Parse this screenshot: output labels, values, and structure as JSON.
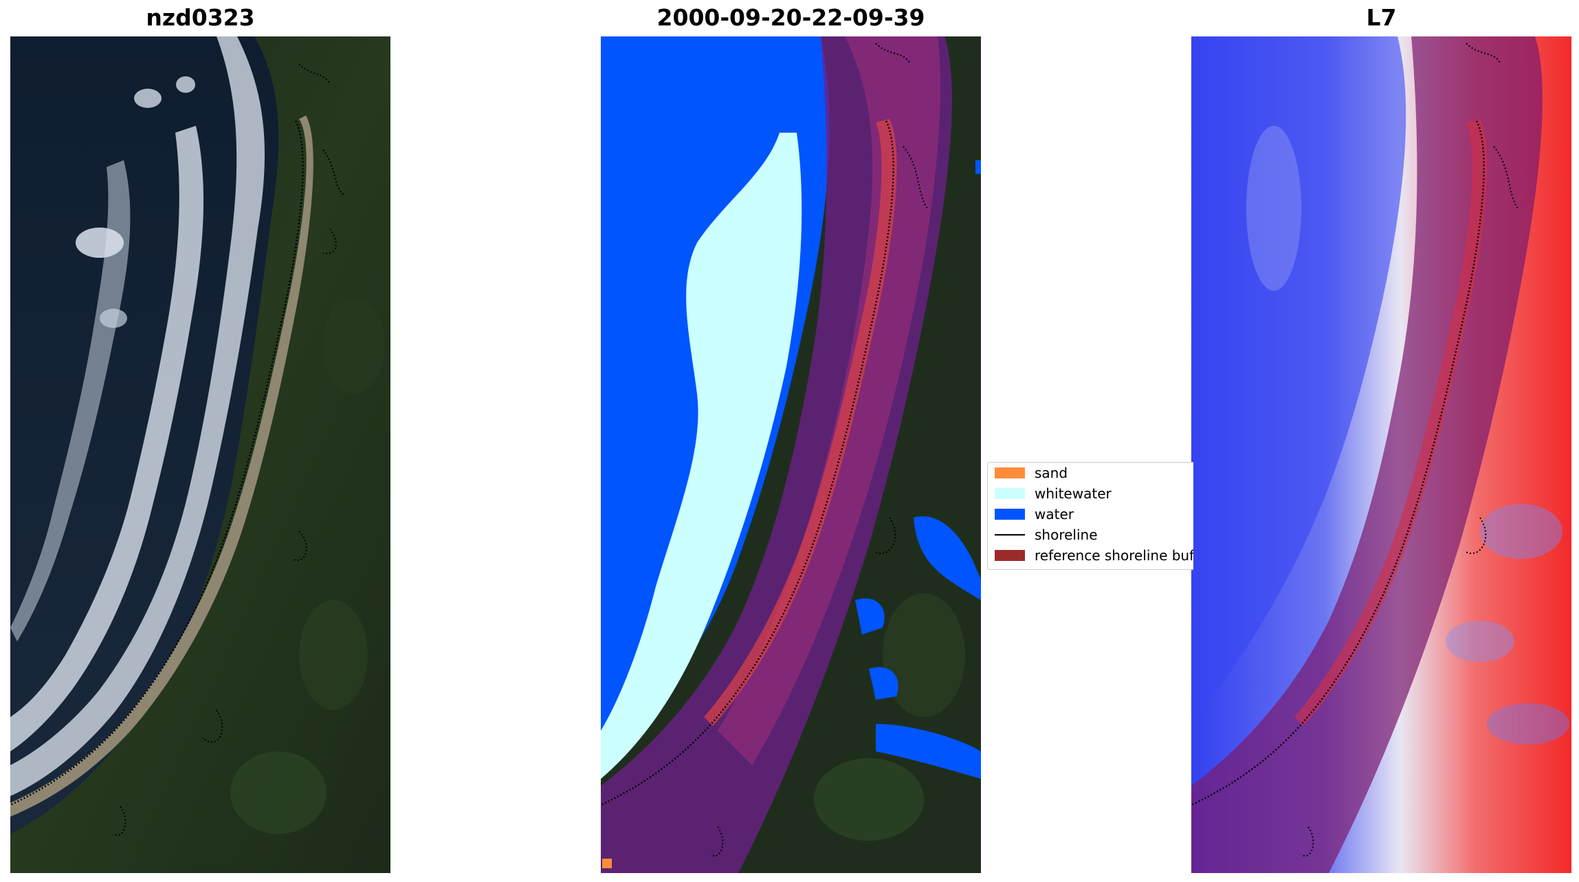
{
  "panels": [
    {
      "title": "nzd0323"
    },
    {
      "title": "2000-09-20-22-09-39"
    },
    {
      "title": "L7"
    }
  ],
  "legend": {
    "items": [
      {
        "label": "sand",
        "kind": "patch",
        "color": "#ff8c3a"
      },
      {
        "label": "whitewater",
        "kind": "patch",
        "color": "#ccffff"
      },
      {
        "label": "water",
        "kind": "patch",
        "color": "#0055ff"
      },
      {
        "label": "shoreline",
        "kind": "line",
        "color": "#000000"
      },
      {
        "label": "reference shoreline buffer",
        "kind": "patch",
        "color": "#9c2a2a"
      }
    ]
  },
  "colors": {
    "ocean": "#142338",
    "forest": "#1f2e1c",
    "surf": "#d7dfe9",
    "beach": "#8d8570",
    "water_class": "#0055ff",
    "whitewater_class": "#ccffff",
    "buffer": "#8b1a3c",
    "index_blue": "#3b4df5",
    "index_red": "#f23a3a"
  }
}
